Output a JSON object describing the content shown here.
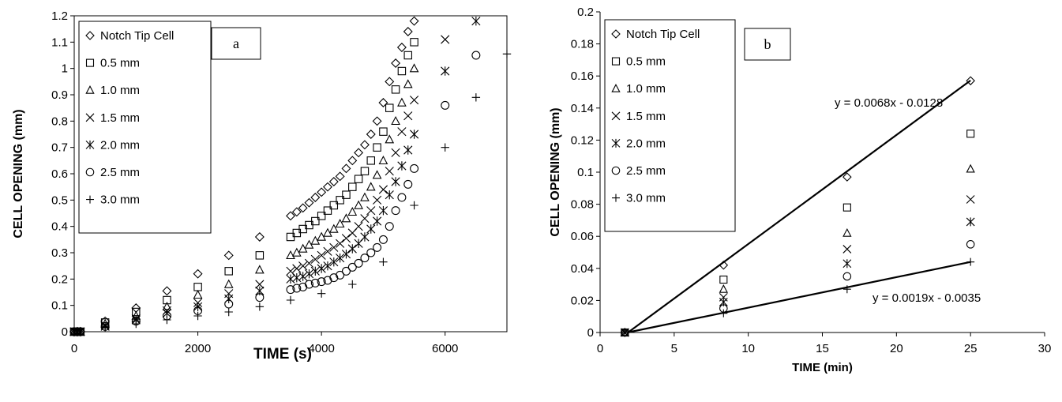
{
  "chart_data": [
    {
      "type": "scatter",
      "panel_label": "a",
      "xlabel": "TIME (s)",
      "ylabel": "CELL OPENING (mm)",
      "xlim": [
        0,
        7000
      ],
      "ylim": [
        0,
        1.2
      ],
      "xticks": [
        "0",
        "2000",
        "4000",
        "6000"
      ],
      "yticks": [
        "0",
        "0.1",
        "0.2",
        "0.3",
        "0.4",
        "0.5",
        "0.6",
        "0.7",
        "0.8",
        "0.9",
        "1",
        "1.1",
        "1.2"
      ],
      "legend_position": "top-left",
      "series": [
        {
          "name": "Notch Tip Cell",
          "marker": "diamond",
          "points": [
            [
              0,
              0
            ],
            [
              50,
              0
            ],
            [
              100,
              0
            ],
            [
              500,
              0.04
            ],
            [
              1000,
              0.09
            ],
            [
              1500,
              0.155
            ],
            [
              2000,
              0.22
            ],
            [
              2500,
              0.29
            ],
            [
              3000,
              0.36
            ],
            [
              3500,
              0.44
            ],
            [
              3600,
              0.455
            ],
            [
              3700,
              0.47
            ],
            [
              3800,
              0.49
            ],
            [
              3900,
              0.51
            ],
            [
              4000,
              0.53
            ],
            [
              4100,
              0.55
            ],
            [
              4200,
              0.57
            ],
            [
              4300,
              0.59
            ],
            [
              4400,
              0.62
            ],
            [
              4500,
              0.65
            ],
            [
              4600,
              0.68
            ],
            [
              4700,
              0.71
            ],
            [
              4800,
              0.75
            ],
            [
              4900,
              0.8
            ],
            [
              5000,
              0.87
            ],
            [
              5100,
              0.95
            ],
            [
              5200,
              1.02
            ],
            [
              5300,
              1.08
            ],
            [
              5400,
              1.14
            ],
            [
              5500,
              1.18
            ]
          ]
        },
        {
          "name": "0.5 mm",
          "marker": "square",
          "points": [
            [
              0,
              0
            ],
            [
              50,
              0
            ],
            [
              100,
              0
            ],
            [
              500,
              0.035
            ],
            [
              1000,
              0.075
            ],
            [
              1500,
              0.12
            ],
            [
              2000,
              0.17
            ],
            [
              2500,
              0.23
            ],
            [
              3000,
              0.29
            ],
            [
              3500,
              0.36
            ],
            [
              3600,
              0.375
            ],
            [
              3700,
              0.39
            ],
            [
              3800,
              0.405
            ],
            [
              3900,
              0.42
            ],
            [
              4000,
              0.44
            ],
            [
              4100,
              0.46
            ],
            [
              4200,
              0.48
            ],
            [
              4300,
              0.5
            ],
            [
              4400,
              0.52
            ],
            [
              4500,
              0.55
            ],
            [
              4600,
              0.58
            ],
            [
              4700,
              0.61
            ],
            [
              4800,
              0.65
            ],
            [
              4900,
              0.7
            ],
            [
              5000,
              0.76
            ],
            [
              5100,
              0.85
            ],
            [
              5200,
              0.92
            ],
            [
              5300,
              0.99
            ],
            [
              5400,
              1.05
            ],
            [
              5500,
              1.1
            ]
          ]
        },
        {
          "name": "1.0 mm",
          "marker": "triangle",
          "points": [
            [
              0,
              0
            ],
            [
              50,
              0
            ],
            [
              100,
              0
            ],
            [
              500,
              0.03
            ],
            [
              1000,
              0.06
            ],
            [
              1500,
              0.095
            ],
            [
              2000,
              0.14
            ],
            [
              2500,
              0.18
            ],
            [
              3000,
              0.235
            ],
            [
              3500,
              0.29
            ],
            [
              3600,
              0.3
            ],
            [
              3700,
              0.315
            ],
            [
              3800,
              0.33
            ],
            [
              3900,
              0.345
            ],
            [
              4000,
              0.36
            ],
            [
              4100,
              0.375
            ],
            [
              4200,
              0.39
            ],
            [
              4300,
              0.41
            ],
            [
              4400,
              0.43
            ],
            [
              4500,
              0.455
            ],
            [
              4600,
              0.48
            ],
            [
              4700,
              0.51
            ],
            [
              4800,
              0.55
            ],
            [
              4900,
              0.595
            ],
            [
              5000,
              0.65
            ],
            [
              5100,
              0.73
            ],
            [
              5200,
              0.8
            ],
            [
              5300,
              0.87
            ],
            [
              5400,
              0.94
            ],
            [
              5500,
              1.0
            ]
          ]
        },
        {
          "name": "1.5 mm",
          "marker": "x",
          "points": [
            [
              0,
              0
            ],
            [
              50,
              0
            ],
            [
              100,
              0
            ],
            [
              500,
              0.025
            ],
            [
              1000,
              0.05
            ],
            [
              1500,
              0.08
            ],
            [
              2000,
              0.11
            ],
            [
              2500,
              0.145
            ],
            [
              3000,
              0.18
            ],
            [
              3500,
              0.23
            ],
            [
              3600,
              0.24
            ],
            [
              3700,
              0.25
            ],
            [
              3800,
              0.26
            ],
            [
              3900,
              0.275
            ],
            [
              4000,
              0.29
            ],
            [
              4100,
              0.305
            ],
            [
              4200,
              0.32
            ],
            [
              4300,
              0.335
            ],
            [
              4400,
              0.355
            ],
            [
              4500,
              0.375
            ],
            [
              4600,
              0.4
            ],
            [
              4700,
              0.43
            ],
            [
              4800,
              0.46
            ],
            [
              4900,
              0.5
            ],
            [
              5000,
              0.54
            ],
            [
              5100,
              0.61
            ],
            [
              5200,
              0.68
            ],
            [
              5300,
              0.76
            ],
            [
              5400,
              0.82
            ],
            [
              5500,
              0.88
            ],
            [
              6000,
              1.11
            ]
          ]
        },
        {
          "name": "2.0 mm",
          "marker": "asterisk",
          "points": [
            [
              0,
              0
            ],
            [
              50,
              0
            ],
            [
              100,
              0
            ],
            [
              500,
              0.02
            ],
            [
              1000,
              0.045
            ],
            [
              1500,
              0.07
            ],
            [
              2000,
              0.095
            ],
            [
              2500,
              0.125
            ],
            [
              3000,
              0.155
            ],
            [
              3500,
              0.2
            ],
            [
              3600,
              0.205
            ],
            [
              3700,
              0.21
            ],
            [
              3800,
              0.22
            ],
            [
              3900,
              0.23
            ],
            [
              4000,
              0.24
            ],
            [
              4100,
              0.25
            ],
            [
              4200,
              0.265
            ],
            [
              4300,
              0.28
            ],
            [
              4400,
              0.295
            ],
            [
              4500,
              0.315
            ],
            [
              4600,
              0.335
            ],
            [
              4700,
              0.36
            ],
            [
              4800,
              0.39
            ],
            [
              4900,
              0.42
            ],
            [
              5000,
              0.46
            ],
            [
              5100,
              0.52
            ],
            [
              5200,
              0.57
            ],
            [
              5300,
              0.63
            ],
            [
              5400,
              0.69
            ],
            [
              5500,
              0.75
            ],
            [
              6000,
              0.99
            ],
            [
              6500,
              1.18
            ]
          ]
        },
        {
          "name": "2.5 mm",
          "marker": "circle",
          "points": [
            [
              0,
              0
            ],
            [
              50,
              0
            ],
            [
              100,
              0
            ],
            [
              500,
              0.02
            ],
            [
              1000,
              0.04
            ],
            [
              1500,
              0.06
            ],
            [
              2000,
              0.08
            ],
            [
              2500,
              0.105
            ],
            [
              3000,
              0.13
            ],
            [
              3500,
              0.16
            ],
            [
              3600,
              0.165
            ],
            [
              3700,
              0.17
            ],
            [
              3800,
              0.18
            ],
            [
              3900,
              0.185
            ],
            [
              4000,
              0.19
            ],
            [
              4100,
              0.195
            ],
            [
              4200,
              0.205
            ],
            [
              4300,
              0.215
            ],
            [
              4400,
              0.23
            ],
            [
              4500,
              0.245
            ],
            [
              4600,
              0.26
            ],
            [
              4700,
              0.28
            ],
            [
              4800,
              0.3
            ],
            [
              4900,
              0.32
            ],
            [
              5000,
              0.35
            ],
            [
              5100,
              0.4
            ],
            [
              5200,
              0.46
            ],
            [
              5300,
              0.51
            ],
            [
              5400,
              0.56
            ],
            [
              5500,
              0.62
            ],
            [
              6000,
              0.86
            ],
            [
              6500,
              1.05
            ]
          ]
        },
        {
          "name": "3.0 mm",
          "marker": "plus",
          "points": [
            [
              0,
              0
            ],
            [
              50,
              0
            ],
            [
              100,
              0
            ],
            [
              500,
              0.015
            ],
            [
              1000,
              0.03
            ],
            [
              1500,
              0.045
            ],
            [
              2000,
              0.06
            ],
            [
              2500,
              0.075
            ],
            [
              3000,
              0.095
            ],
            [
              3500,
              0.12
            ],
            [
              4000,
              0.145
            ],
            [
              4500,
              0.18
            ],
            [
              5000,
              0.265
            ],
            [
              5500,
              0.48
            ],
            [
              6000,
              0.7
            ],
            [
              6500,
              0.89
            ],
            [
              7000,
              1.055
            ]
          ]
        }
      ]
    },
    {
      "type": "scatter",
      "panel_label": "b",
      "xlabel": "TIME (min)",
      "ylabel": "CELL OPENING (mm)",
      "xlim": [
        0,
        30
      ],
      "ylim": [
        0,
        0.2
      ],
      "xticks": [
        "0",
        "5",
        "10",
        "15",
        "20",
        "25",
        "30"
      ],
      "yticks": [
        "0",
        "0.02",
        "0.04",
        "0.06",
        "0.08",
        "0.1",
        "0.12",
        "0.14",
        "0.16",
        "0.18",
        "0.2"
      ],
      "legend_position": "top-left",
      "series": [
        {
          "name": "Notch Tip Cell",
          "marker": "diamond",
          "points": [
            [
              1.67,
              0
            ],
            [
              8.33,
              0.042
            ],
            [
              16.67,
              0.097
            ],
            [
              25,
              0.157
            ]
          ]
        },
        {
          "name": "0.5 mm",
          "marker": "square",
          "points": [
            [
              1.67,
              0
            ],
            [
              8.33,
              0.033
            ],
            [
              16.67,
              0.078
            ],
            [
              25,
              0.124
            ]
          ]
        },
        {
          "name": "1.0 mm",
          "marker": "triangle",
          "points": [
            [
              1.67,
              0
            ],
            [
              8.33,
              0.027
            ],
            [
              16.67,
              0.062
            ],
            [
              25,
              0.102
            ]
          ]
        },
        {
          "name": "1.5 mm",
          "marker": "x",
          "points": [
            [
              1.67,
              0
            ],
            [
              8.33,
              0.022
            ],
            [
              16.67,
              0.052
            ],
            [
              25,
              0.083
            ]
          ]
        },
        {
          "name": "2.0 mm",
          "marker": "asterisk",
          "points": [
            [
              1.67,
              0
            ],
            [
              8.33,
              0.019
            ],
            [
              16.67,
              0.043
            ],
            [
              25,
              0.069
            ]
          ]
        },
        {
          "name": "2.5 mm",
          "marker": "circle",
          "points": [
            [
              1.67,
              0
            ],
            [
              8.33,
              0.015
            ],
            [
              16.67,
              0.035
            ],
            [
              25,
              0.055
            ]
          ]
        },
        {
          "name": "3.0 mm",
          "marker": "plus",
          "points": [
            [
              1.67,
              0
            ],
            [
              8.33,
              0.012
            ],
            [
              16.67,
              0.027
            ],
            [
              25,
              0.044
            ]
          ]
        }
      ],
      "fits": [
        {
          "label": "y = 0.0068x - 0.0128",
          "slope": 0.0068,
          "intercept": -0.0128,
          "x_range": [
            1.8824,
            25
          ]
        },
        {
          "label": "y = 0.0019x - 0.0035",
          "slope": 0.0019,
          "intercept": -0.0035,
          "x_range": [
            1.8421,
            25
          ]
        }
      ]
    }
  ]
}
